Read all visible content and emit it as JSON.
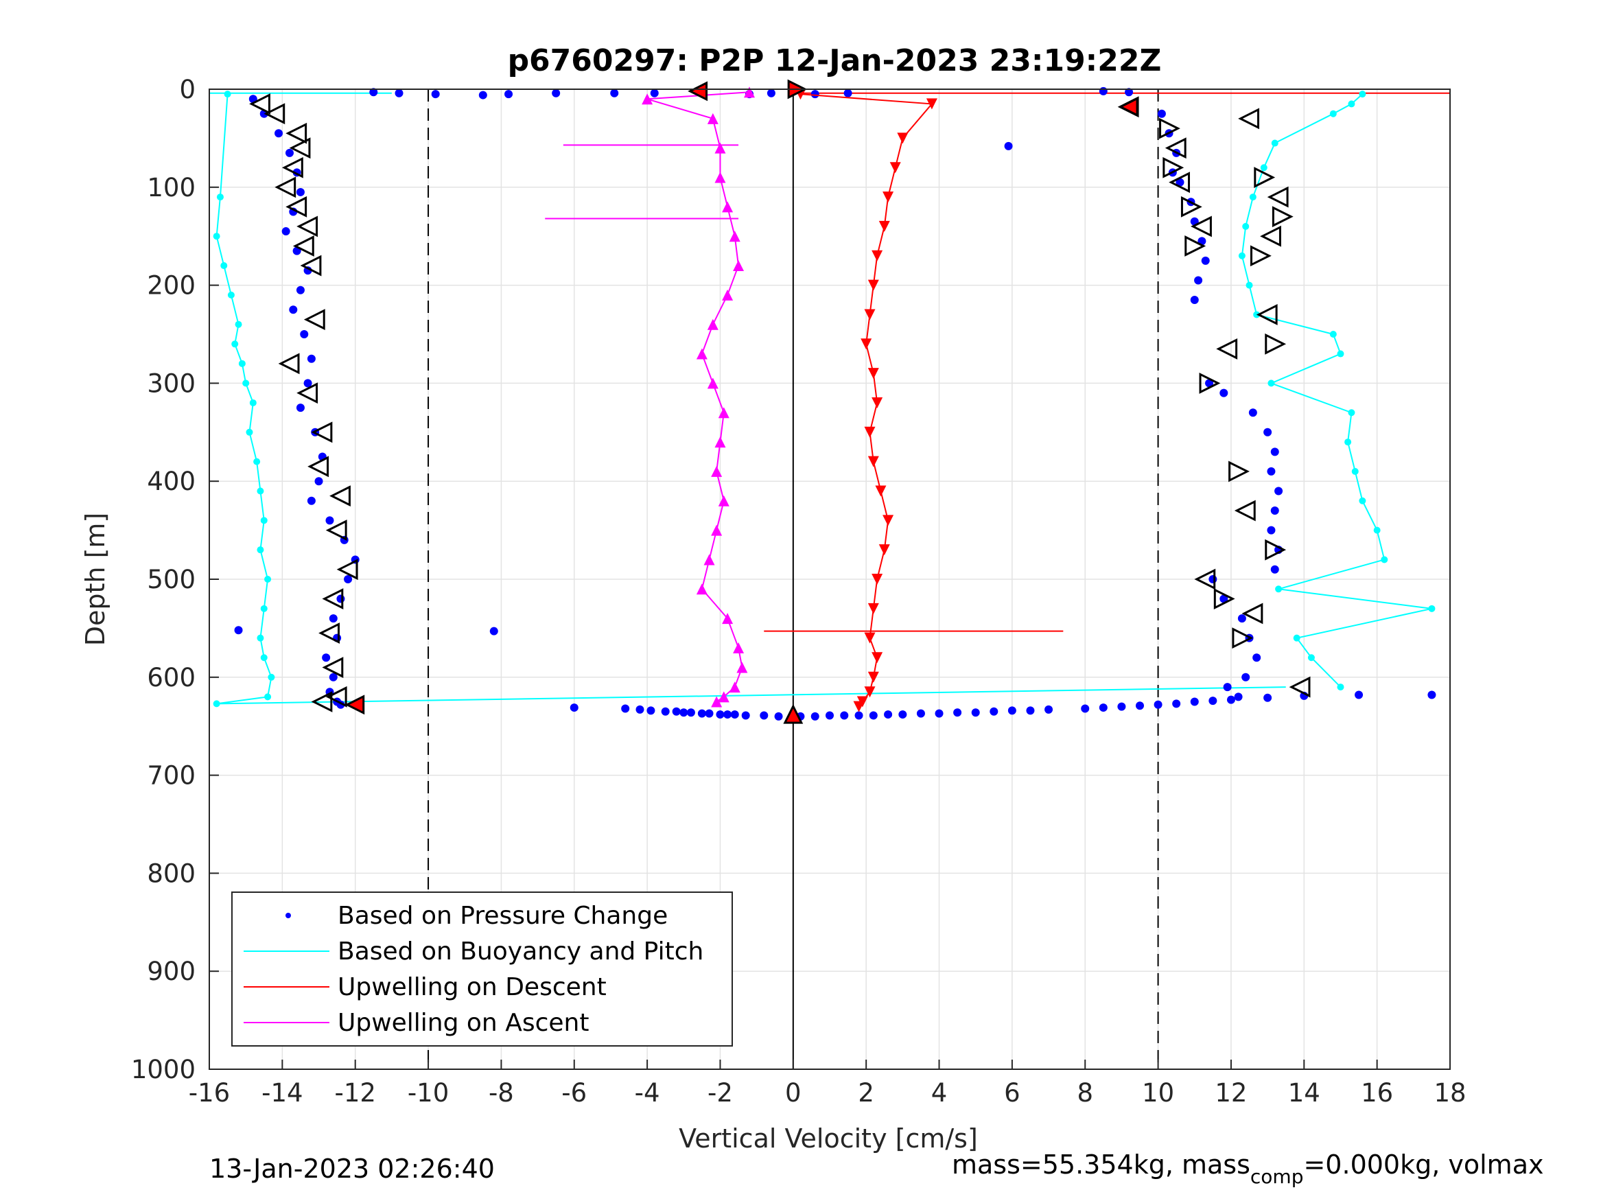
{
  "chart_data": {
    "type": "scatter",
    "title": "p6760297: P2P 12-Jan-2023 23:19:22Z",
    "xlabel": "Vertical Velocity [cm/s]",
    "ylabel": "Depth [m]",
    "xlim": [
      -16,
      18
    ],
    "ylim": [
      0,
      1000
    ],
    "y_reversed": true,
    "grid": true,
    "x_ticks": [
      "-16",
      "-14",
      "-12",
      "-10",
      "-8",
      "-6",
      "-4",
      "-2",
      "0",
      "2",
      "4",
      "6",
      "8",
      "10",
      "12",
      "14",
      "16",
      "18"
    ],
    "y_ticks": [
      "0",
      "100",
      "200",
      "300",
      "400",
      "500",
      "600",
      "700",
      "800",
      "900",
      "1000"
    ],
    "reference_lines": [
      {
        "x": -10,
        "style": "dashed"
      },
      {
        "x": 0,
        "style": "solid"
      },
      {
        "x": 10,
        "style": "dashed"
      }
    ],
    "legend": {
      "location": "bottom-left",
      "entries": [
        {
          "label": "Based on Pressure Change",
          "color": "#0000ff",
          "marker": "dot"
        },
        {
          "label": "Based on Buoyancy and Pitch",
          "color": "#00ffff",
          "marker": "line"
        },
        {
          "label": "Upwelling on Descent",
          "color": "#ff0000",
          "marker": "line"
        },
        {
          "label": "Upwelling on Ascent",
          "color": "#ff00ff",
          "marker": "line"
        }
      ]
    },
    "series": [
      {
        "key": "pressure_descent",
        "color": "#0000ff",
        "marker": "dot",
        "x": [
          -14.8,
          -14.5,
          -14.1,
          -13.8,
          -13.6,
          -13.5,
          -13.7,
          -13.9,
          -13.6,
          -13.3,
          -13.5,
          -13.7,
          -13.4,
          -13.2,
          -13.3,
          -13.5,
          -13.1,
          -12.9,
          -13.0,
          -13.2,
          -12.7,
          -12.3,
          -12.0,
          -12.2,
          -12.4,
          -12.6,
          -12.5,
          -12.8,
          -12.6,
          -12.7,
          -12.5,
          -12.4
        ],
        "y": [
          10,
          25,
          45,
          65,
          85,
          105,
          125,
          145,
          165,
          185,
          205,
          225,
          250,
          275,
          300,
          325,
          350,
          375,
          400,
          420,
          440,
          460,
          480,
          500,
          520,
          540,
          560,
          580,
          600,
          615,
          625,
          628
        ]
      },
      {
        "key": "pressure_ascent",
        "color": "#0000ff",
        "marker": "dot",
        "x": [
          10.1,
          10.3,
          10.5,
          10.4,
          10.6,
          10.9,
          11.0,
          11.2,
          11.3,
          11.1,
          11.0,
          11.4,
          11.8,
          12.6,
          13.0,
          13.2,
          13.1,
          13.3,
          13.2,
          13.1,
          13.3,
          13.2,
          11.5,
          11.8,
          12.3,
          12.5,
          12.7,
          12.4,
          11.9,
          12.2
        ],
        "y": [
          25,
          45,
          65,
          85,
          95,
          115,
          135,
          155,
          175,
          195,
          215,
          300,
          310,
          330,
          350,
          370,
          390,
          410,
          430,
          450,
          470,
          490,
          500,
          520,
          540,
          560,
          580,
          600,
          610,
          620
        ]
      },
      {
        "key": "pressure_surface",
        "color": "#0000ff",
        "marker": "dot",
        "x": [
          -11.5,
          -10.8,
          -9.8,
          -8.5,
          -7.8,
          -6.5,
          -4.9,
          -3.8,
          -1.2,
          -0.6,
          0.6,
          1.5,
          9.2,
          8.5
        ],
        "y": [
          3,
          4,
          5,
          6,
          5,
          4,
          4,
          4,
          5,
          4,
          5,
          4,
          3,
          2
        ]
      },
      {
        "key": "pressure_bottom",
        "color": "#0000ff",
        "marker": "dot",
        "x": [
          -6,
          -4.6,
          -4.2,
          -3.9,
          -3.5,
          -3.2,
          -3.0,
          -2.8,
          -2.5,
          -2.3,
          -2.0,
          -1.8,
          -1.6,
          -1.3,
          -0.8,
          -0.4,
          0.2,
          0.6,
          1.0,
          1.4,
          1.8,
          2.2,
          2.6,
          3.0,
          3.5,
          4.0,
          4.5,
          5.0,
          5.5,
          6.0,
          6.5,
          7.0,
          8.0,
          8.5,
          9.0,
          9.5,
          10.0,
          10.5,
          11.0,
          11.5,
          12.0,
          13.0,
          14.0,
          15.5,
          17.5
        ],
        "y": [
          631,
          632,
          633,
          634,
          635,
          635,
          636,
          636,
          637,
          637,
          638,
          638,
          638,
          639,
          639,
          640,
          640,
          640,
          639,
          639,
          639,
          639,
          638,
          638,
          637,
          637,
          636,
          636,
          635,
          634,
          634,
          633,
          632,
          631,
          630,
          629,
          628,
          627,
          625,
          624,
          623,
          621,
          619,
          618,
          618
        ]
      },
      {
        "key": "pressure_outliers",
        "color": "#0000ff",
        "marker": "dot",
        "x": [
          -8.2,
          5.9,
          -15.2
        ],
        "y": [
          553,
          58,
          552
        ]
      },
      {
        "key": "buoyancy_descent",
        "color": "#00ffff",
        "marker": "line",
        "x": [
          -15.5,
          -15.7,
          -15.8,
          -15.6,
          -15.4,
          -15.2,
          -15.3,
          -15.1,
          -15.0,
          -14.8,
          -14.9,
          -14.7,
          -14.6,
          -14.5,
          -14.6,
          -14.4,
          -14.5,
          -14.6,
          -14.5,
          -14.3,
          -14.4,
          -15.8
        ],
        "y": [
          5,
          110,
          150,
          180,
          210,
          240,
          260,
          280,
          300,
          320,
          350,
          380,
          410,
          440,
          470,
          500,
          530,
          560,
          580,
          600,
          620,
          627
        ]
      },
      {
        "key": "buoyancy_ascent",
        "color": "#00ffff",
        "marker": "line",
        "x": [
          15.6,
          15.3,
          14.8,
          13.2,
          12.9,
          12.6,
          12.4,
          12.3,
          12.5,
          12.7,
          14.8,
          15.0,
          13.1,
          15.3,
          15.2,
          15.4,
          15.6,
          16.0,
          16.2,
          13.3,
          17.5,
          13.8,
          14.2,
          15.0
        ],
        "y": [
          5,
          15,
          25,
          55,
          80,
          110,
          140,
          170,
          200,
          230,
          250,
          270,
          300,
          330,
          360,
          390,
          420,
          450,
          480,
          510,
          530,
          560,
          580,
          610
        ]
      },
      {
        "key": "upwelling_descent",
        "color": "#ff0000",
        "marker": "triangle-down",
        "x": [
          0.2,
          3.8,
          3.0,
          2.8,
          2.6,
          2.5,
          2.3,
          2.2,
          2.1,
          2.0,
          2.2,
          2.3,
          2.1,
          2.2,
          2.4,
          2.6,
          2.5,
          2.3,
          2.2,
          2.1,
          2.3,
          2.2,
          2.1,
          1.9,
          1.8
        ],
        "y": [
          5,
          15,
          50,
          80,
          110,
          140,
          170,
          200,
          230,
          260,
          290,
          320,
          350,
          380,
          410,
          440,
          470,
          500,
          530,
          560,
          580,
          600,
          615,
          625,
          630
        ]
      },
      {
        "key": "upwelling_ascent",
        "color": "#ff00ff",
        "marker": "triangle-up",
        "x": [
          -1.2,
          -4.0,
          -2.2,
          -2.0,
          -2.0,
          -1.8,
          -1.6,
          -1.5,
          -1.8,
          -2.2,
          -2.5,
          -2.2,
          -1.9,
          -2.0,
          -2.1,
          -1.9,
          -2.1,
          -2.3,
          -2.5,
          -1.8,
          -1.5,
          -1.4,
          -1.6,
          -1.9,
          -2.1
        ],
        "y": [
          3,
          10,
          30,
          60,
          90,
          120,
          150,
          180,
          210,
          240,
          270,
          300,
          330,
          360,
          390,
          420,
          450,
          480,
          510,
          540,
          570,
          590,
          610,
          620,
          625
        ]
      },
      {
        "key": "dive_markers",
        "color": "#000000",
        "marker": "triangle-open",
        "x": [
          -14.6,
          -14.2,
          -13.6,
          -13.5,
          -13.7,
          -13.9,
          -13.6,
          -13.3,
          -13.4,
          -13.2,
          -13.8,
          -13.1,
          -13.3,
          -12.9,
          -13.0,
          -12.4,
          -12.5,
          -12.2,
          -12.6,
          -12.7,
          -12.6,
          -12.5,
          -12.9,
          9.2,
          10.3,
          10.5,
          10.4,
          10.6,
          10.9,
          11.2,
          11.0,
          12.5,
          12.9,
          13.3,
          13.4,
          13.1,
          12.8,
          13.0,
          13.2,
          11.3,
          11.8,
          12.6,
          12.3,
          13.9,
          11.4,
          11.9,
          12.2,
          12.4,
          13.2
        ],
        "y": [
          15,
          25,
          45,
          60,
          80,
          100,
          120,
          140,
          160,
          180,
          280,
          235,
          310,
          350,
          385,
          415,
          450,
          490,
          520,
          555,
          590,
          620,
          625,
          18,
          40,
          60,
          80,
          95,
          120,
          140,
          160,
          30,
          90,
          110,
          130,
          150,
          170,
          230,
          260,
          500,
          520,
          535,
          560,
          610,
          300,
          265,
          390,
          430,
          470
        ]
      },
      {
        "key": "red_markers",
        "color": "#ff0000",
        "marker": "triangle-filled",
        "x": [
          -2.6,
          0.1,
          9.2,
          -12.0,
          0.0
        ],
        "y": [
          2,
          0,
          18,
          628,
          638
        ]
      }
    ],
    "connector_lines": [
      {
        "color": "#00ffff",
        "x": [
          -15.8,
          13.5
        ],
        "y": [
          627,
          610
        ]
      },
      {
        "color": "#ff0000",
        "x": [
          -0.8,
          7.4
        ],
        "y": [
          553,
          553
        ]
      },
      {
        "color": "#ff00ff",
        "x": [
          -6.8,
          -1.5
        ],
        "y": [
          132,
          132
        ]
      },
      {
        "color": "#ff00ff",
        "x": [
          -6.3,
          -1.5
        ],
        "y": [
          57,
          57
        ]
      },
      {
        "color": "#ff0000",
        "x": [
          0.2,
          18.0
        ],
        "y": [
          4,
          4
        ]
      },
      {
        "color": "#00ffff",
        "x": [
          -16.0,
          -11.0
        ],
        "y": [
          4,
          4
        ]
      }
    ]
  },
  "footer": {
    "timestamp": "13-Jan-2023 02:26:40",
    "mass_prefix": "mass=55.354kg, mass",
    "mass_sub": "comp",
    "mass_suffix": "=0.000kg, volmax"
  }
}
